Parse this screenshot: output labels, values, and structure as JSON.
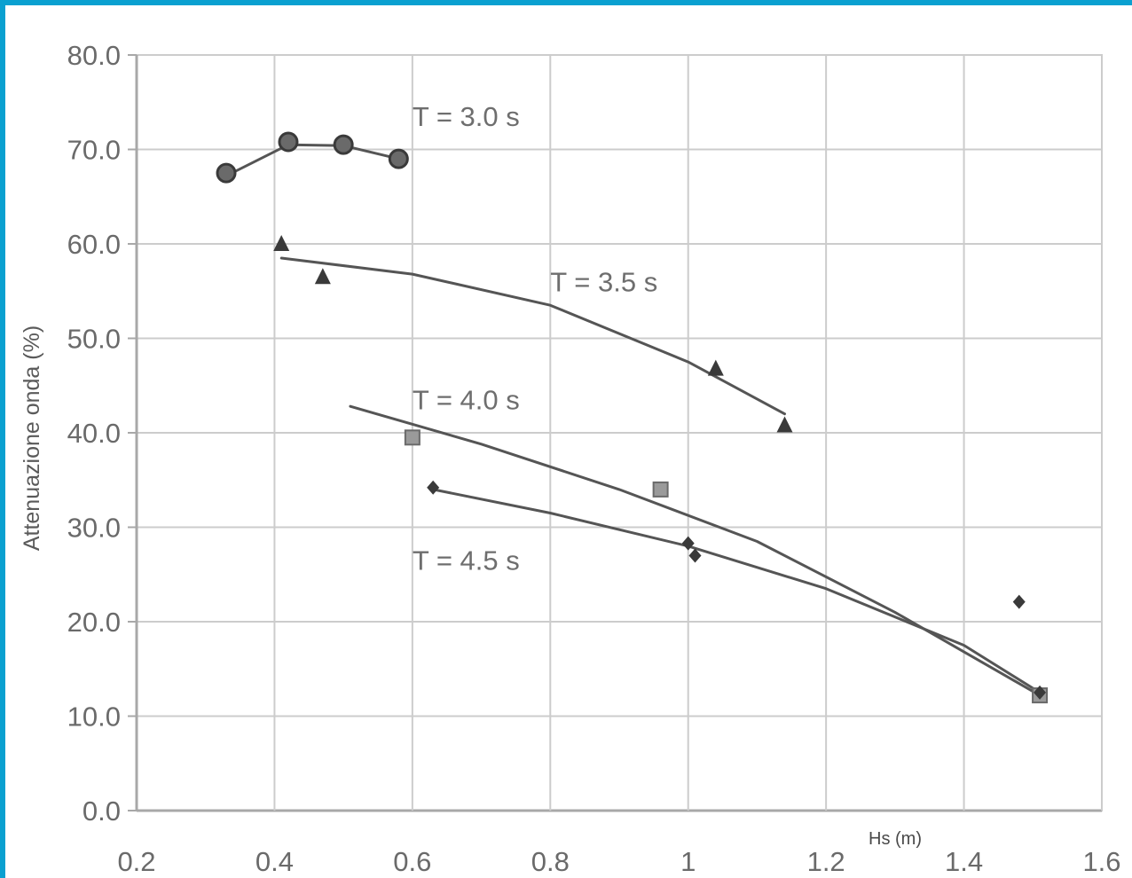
{
  "chart_data": {
    "type": "scatter",
    "title": "",
    "xlabel": "Hs (m)",
    "ylabel": "Attenuazione onda (%)",
    "xlim": [
      0.2,
      1.6
    ],
    "ylim": [
      0.0,
      80.0
    ],
    "x_ticks": [
      "0.2",
      "0.4",
      "0.6",
      "0.8",
      "1",
      "1.2",
      "1.4",
      "1.6"
    ],
    "y_ticks": [
      "0.0",
      "10.0",
      "20.0",
      "30.0",
      "40.0",
      "50.0",
      "60.0",
      "70.0",
      "80.0"
    ],
    "x_tick_values": [
      0.2,
      0.4,
      0.6,
      0.8,
      1.0,
      1.2,
      1.4,
      1.6
    ],
    "y_tick_values": [
      0,
      10,
      20,
      30,
      40,
      50,
      60,
      70,
      80
    ],
    "grid": true,
    "series": [
      {
        "label": "T = 3.0 s",
        "marker": "circle",
        "points": [
          [
            0.33,
            67.5
          ],
          [
            0.42,
            70.8
          ],
          [
            0.5,
            70.5
          ],
          [
            0.58,
            69.0
          ]
        ],
        "fit": [
          [
            0.33,
            67.2
          ],
          [
            0.42,
            70.5
          ],
          [
            0.5,
            70.4
          ],
          [
            0.58,
            69.0
          ]
        ]
      },
      {
        "label": "T = 3.5 s",
        "marker": "triangle",
        "points": [
          [
            0.41,
            60.0
          ],
          [
            0.47,
            56.5
          ],
          [
            1.04,
            46.8
          ],
          [
            1.14,
            40.8
          ]
        ],
        "fit": [
          [
            0.41,
            58.5
          ],
          [
            0.6,
            56.8
          ],
          [
            0.8,
            53.5
          ],
          [
            1.0,
            47.5
          ],
          [
            1.14,
            42.0
          ]
        ]
      },
      {
        "label": "T = 4.0 s",
        "marker": "square",
        "points": [
          [
            0.6,
            39.5
          ],
          [
            0.96,
            34.0
          ],
          [
            1.51,
            12.2
          ]
        ],
        "fit": [
          [
            0.51,
            42.8
          ],
          [
            0.7,
            38.8
          ],
          [
            0.9,
            34.0
          ],
          [
            1.1,
            28.5
          ],
          [
            1.3,
            21.0
          ],
          [
            1.51,
            12.2
          ]
        ]
      },
      {
        "label": "T = 4.5 s",
        "marker": "diamond",
        "points": [
          [
            0.63,
            34.2
          ],
          [
            1.0,
            28.3
          ],
          [
            1.01,
            27.0
          ],
          [
            1.48,
            22.1
          ],
          [
            1.51,
            12.5
          ]
        ],
        "fit": [
          [
            0.63,
            34.0
          ],
          [
            0.8,
            31.5
          ],
          [
            1.0,
            28.0
          ],
          [
            1.2,
            23.5
          ],
          [
            1.4,
            17.5
          ],
          [
            1.51,
            12.5
          ]
        ]
      }
    ],
    "annotations": [
      {
        "text": "T = 3.0 s",
        "x": 0.6,
        "y": 72.5
      },
      {
        "text": "T = 3.5 s",
        "x": 0.8,
        "y": 55.0
      },
      {
        "text": "T = 4.0 s",
        "x": 0.6,
        "y": 42.5
      },
      {
        "text": "T = 4.5 s",
        "x": 0.6,
        "y": 25.5
      }
    ],
    "colors": {
      "frame": "#0aa0d0",
      "data": "#555555",
      "grid": "#cccccc",
      "axis": "#a8a8a8"
    }
  }
}
